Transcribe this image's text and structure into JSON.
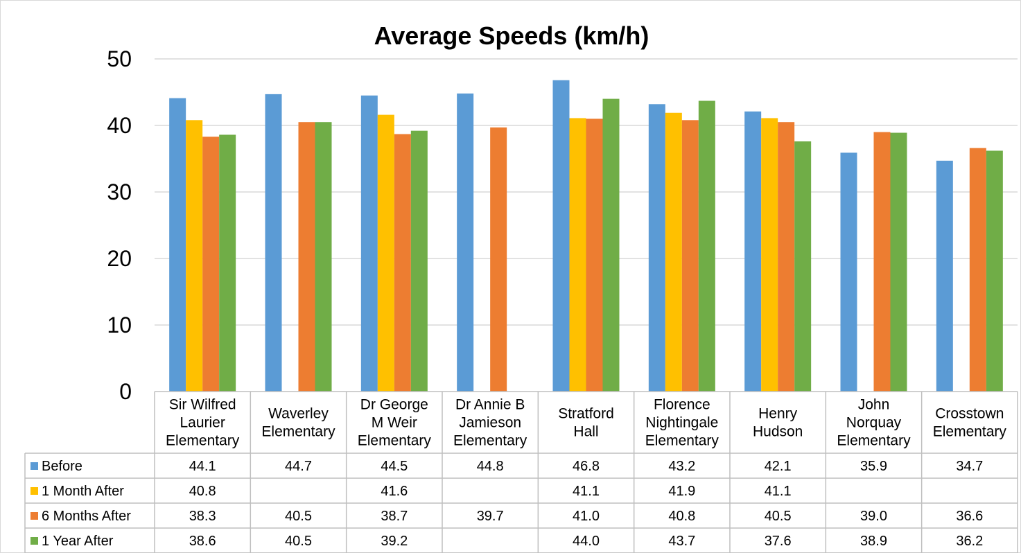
{
  "chart_data": {
    "type": "bar",
    "title": "Average Speeds (km/h)",
    "xlabel": "",
    "ylabel": "",
    "ylim": [
      0,
      50
    ],
    "yticks": [
      "0",
      "10",
      "20",
      "30",
      "40",
      "50"
    ],
    "grid": true,
    "legend_placement": "data table rows below the chart",
    "categories": [
      [
        "Sir Wilfred",
        "Laurier",
        "Elementary"
      ],
      [
        "Waverley",
        "Elementary"
      ],
      [
        "Dr George",
        "M Weir",
        "Elementary"
      ],
      [
        "Dr Annie B",
        "Jamieson",
        "Elementary"
      ],
      [
        "Stratford",
        "Hall"
      ],
      [
        "Florence",
        "Nightingale",
        "Elementary"
      ],
      [
        "Henry",
        "Hudson"
      ],
      [
        "John",
        "Norquay",
        "Elementary"
      ],
      [
        "Crosstown",
        "Elementary"
      ]
    ],
    "series": [
      {
        "name": "Before",
        "color": "#5b9bd5",
        "values": [
          44.1,
          44.7,
          44.5,
          44.8,
          46.8,
          43.2,
          42.1,
          35.9,
          34.7
        ],
        "labels": [
          "44.1",
          "44.7",
          "44.5",
          "44.8",
          "46.8",
          "43.2",
          "42.1",
          "35.9",
          "34.7"
        ]
      },
      {
        "name": "1 Month After",
        "color": "#ffc000",
        "values": [
          40.8,
          null,
          41.6,
          null,
          41.1,
          41.9,
          41.1,
          null,
          null
        ],
        "labels": [
          "40.8",
          "",
          "41.6",
          "",
          "41.1",
          "41.9",
          "41.1",
          "",
          ""
        ]
      },
      {
        "name": "6 Months After",
        "color": "#ed7d31",
        "values": [
          38.3,
          40.5,
          38.7,
          39.7,
          41.0,
          40.8,
          40.5,
          39.0,
          36.6
        ],
        "labels": [
          "38.3",
          "40.5",
          "38.7",
          "39.7",
          "41.0",
          "40.8",
          "40.5",
          "39.0",
          "36.6"
        ]
      },
      {
        "name": "1 Year After",
        "color": "#70ad47",
        "values": [
          38.6,
          40.5,
          39.2,
          null,
          44.0,
          43.7,
          37.6,
          38.9,
          36.2
        ],
        "labels": [
          "38.6",
          "40.5",
          "39.2",
          "",
          "44.0",
          "43.7",
          "37.6",
          "38.9",
          "36.2"
        ]
      }
    ]
  },
  "colors": {
    "gridline": "#d9d9d9",
    "table_border": "#bfbfbf"
  }
}
